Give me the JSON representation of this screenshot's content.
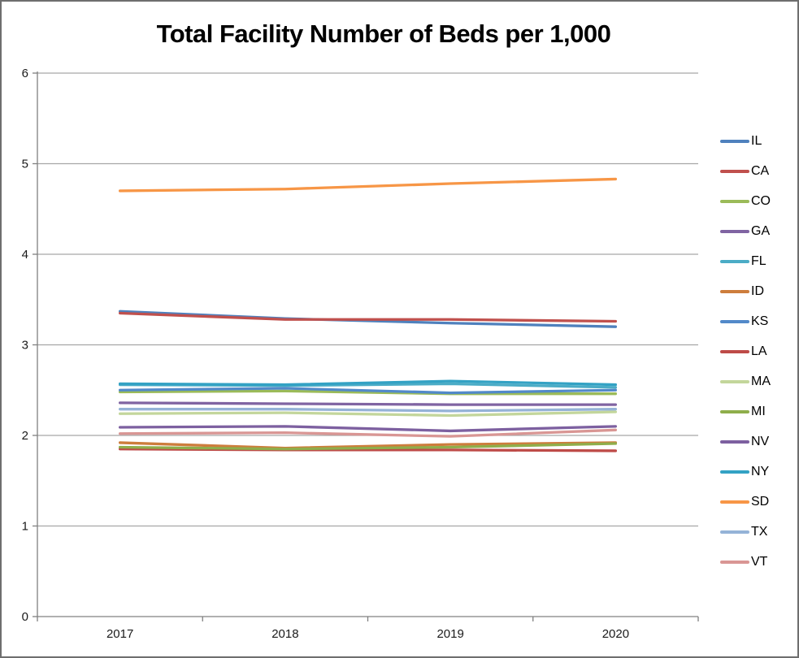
{
  "chart_data": {
    "type": "line",
    "title": "Total Facility Number of Beds per 1,000",
    "categories": [
      "2017",
      "2018",
      "2019",
      "2020"
    ],
    "xlabel": "",
    "ylabel": "",
    "ylim": [
      0,
      6
    ],
    "y_ticks": [
      0,
      1,
      2,
      3,
      4,
      5,
      6
    ],
    "grid": true,
    "legend_position": "right",
    "colors": {
      "gridline": "#a6a6a6",
      "axis": "#808080",
      "background": "#ffffff",
      "border": "#6e6e6e",
      "title_text": "#000000",
      "tick_text": "#1a1a1a"
    },
    "series": [
      {
        "name": "IL",
        "color": "#4F81BD",
        "values": [
          3.37,
          3.29,
          3.24,
          3.2
        ]
      },
      {
        "name": "CA",
        "color": "#C0504D",
        "values": [
          3.35,
          3.28,
          3.28,
          3.26
        ]
      },
      {
        "name": "CO",
        "color": "#9BBB59",
        "values": [
          2.48,
          2.49,
          2.46,
          2.46
        ]
      },
      {
        "name": "GA",
        "color": "#8064A2",
        "values": [
          2.36,
          2.35,
          2.34,
          2.34
        ]
      },
      {
        "name": "FL",
        "color": "#4BACC6",
        "values": [
          2.56,
          2.55,
          2.57,
          2.53
        ]
      },
      {
        "name": "ID",
        "color": "#CD7D3C",
        "values": [
          1.92,
          1.86,
          1.9,
          1.92
        ]
      },
      {
        "name": "KS",
        "color": "#5289C9",
        "values": [
          2.5,
          2.52,
          2.47,
          2.5
        ]
      },
      {
        "name": "LA",
        "color": "#BE4B48",
        "values": [
          1.85,
          1.84,
          1.84,
          1.83
        ]
      },
      {
        "name": "MA",
        "color": "#C3D69B",
        "values": [
          2.24,
          2.25,
          2.22,
          2.26
        ]
      },
      {
        "name": "MI",
        "color": "#8FAE4B",
        "values": [
          1.87,
          1.85,
          1.87,
          1.91
        ]
      },
      {
        "name": "NV",
        "color": "#7D60A0",
        "values": [
          2.09,
          2.1,
          2.05,
          2.1
        ]
      },
      {
        "name": "NY",
        "color": "#33A2C4",
        "values": [
          2.57,
          2.56,
          2.6,
          2.56
        ]
      },
      {
        "name": "SD",
        "color": "#F79646",
        "values": [
          4.7,
          4.72,
          4.78,
          4.83
        ]
      },
      {
        "name": "TX",
        "color": "#95B3D7",
        "values": [
          2.29,
          2.29,
          2.27,
          2.29
        ]
      },
      {
        "name": "VT",
        "color": "#D99694",
        "values": [
          2.02,
          2.03,
          1.99,
          2.06
        ]
      }
    ]
  }
}
